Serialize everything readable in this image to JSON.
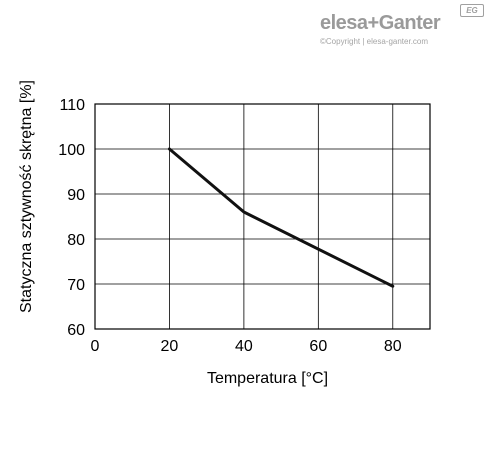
{
  "logo": {
    "brand": "elesa+Ganter",
    "copyright": "©Copyright | elesa-ganter.com",
    "badge": "EG"
  },
  "chart_data": {
    "type": "line",
    "title": "",
    "xlabel": "Temperatura [°C]",
    "ylabel": "Statyczna sztywność skrętna [%]",
    "xlim": [
      0,
      90
    ],
    "ylim": [
      60,
      110
    ],
    "xticks": [
      0,
      20,
      40,
      60,
      80
    ],
    "yticks": [
      60,
      70,
      80,
      90,
      100,
      110
    ],
    "x_gridlines": [
      20,
      40,
      60,
      80
    ],
    "y_gridlines": [
      70,
      80,
      90,
      100
    ],
    "grid": true,
    "series": [
      {
        "x": [
          20,
          40,
          80
        ],
        "y": [
          100,
          86,
          69.5
        ],
        "color": "#111111"
      }
    ]
  }
}
